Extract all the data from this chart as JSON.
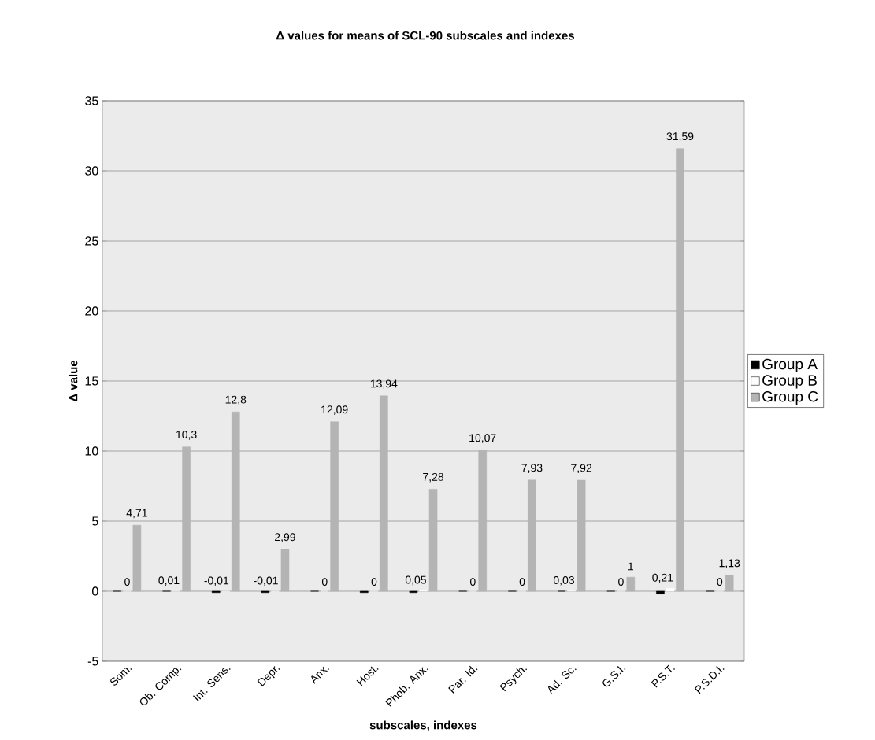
{
  "chart_data": {
    "type": "bar",
    "title": "Δ values for means of SCL-90 subscales and indexes",
    "xlabel": "subscales, indexes",
    "ylabel": "Δ value",
    "categories": [
      "Som.",
      "Ob. Comp.",
      "Int. Sens.",
      "Depr.",
      "Anx.",
      "Host.",
      "Phob. Anx.",
      "Par. Id.",
      "Psych.",
      "Ad. Sc.",
      "G.S.I.",
      "P.S.T.",
      "P.S.D.I."
    ],
    "series": [
      {
        "name": "Group A",
        "color": "#000000",
        "values": [
          0,
          0,
          -0.1,
          -0.1,
          0,
          -0.1,
          -0.1,
          0,
          0,
          0,
          0,
          -0.2,
          0
        ]
      },
      {
        "name": "Group B",
        "color": "#ffffff",
        "values": [
          0,
          0.01,
          -0.01,
          -0.01,
          0,
          0,
          0.05,
          0,
          0,
          0.03,
          0,
          0.21,
          0
        ],
        "value_labels": [
          "0",
          "0,01",
          "-0,01",
          "-0,01",
          "0",
          "0",
          "0,05",
          "0",
          "0",
          "0,03",
          "0",
          "0,21",
          "0"
        ]
      },
      {
        "name": "Group C",
        "color": "#b4b4b4",
        "values": [
          4.71,
          10.3,
          12.8,
          2.99,
          12.09,
          13.94,
          7.28,
          10.07,
          7.93,
          7.92,
          1,
          31.59,
          1.13
        ],
        "value_labels": [
          "4,71",
          "10,3",
          "12,8",
          "2,99",
          "12,09",
          "13,94",
          "7,28",
          "10,07",
          "7,93",
          "7,92",
          "1",
          "31,59",
          "1,13"
        ]
      }
    ],
    "ylim": [
      -5,
      35
    ],
    "yticks": [
      -5,
      0,
      5,
      10,
      15,
      20,
      25,
      30,
      35
    ],
    "grid": "y",
    "legend": "right"
  }
}
